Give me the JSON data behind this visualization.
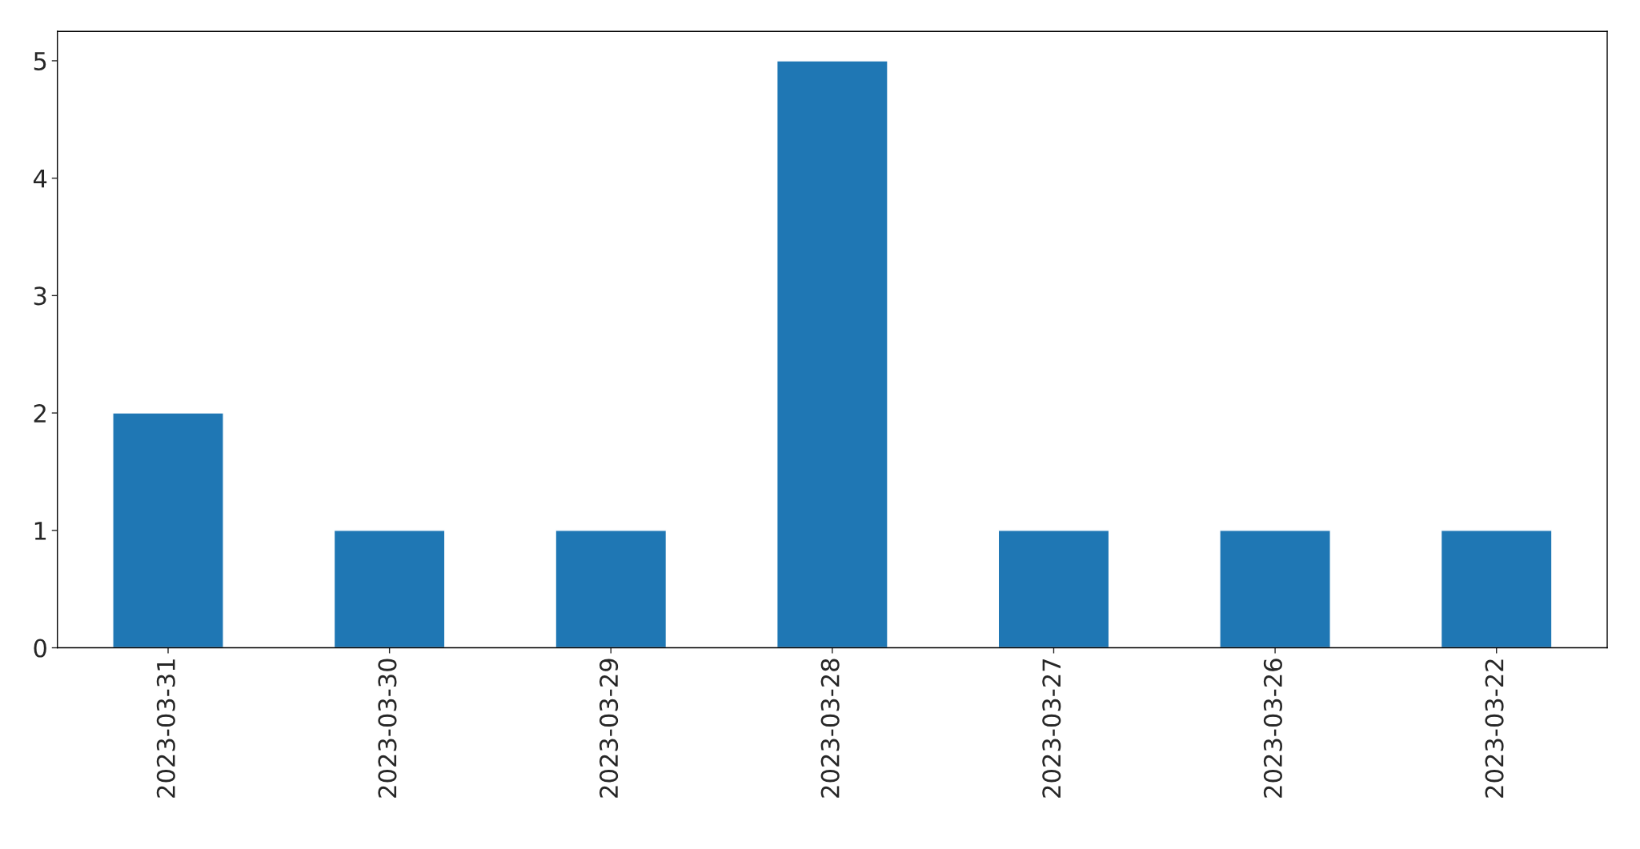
{
  "chart_data": {
    "type": "bar",
    "categories": [
      "2023-03-31",
      "2023-03-30",
      "2023-03-29",
      "2023-03-28",
      "2023-03-27",
      "2023-03-26",
      "2023-03-22"
    ],
    "values": [
      2,
      1,
      1,
      5,
      1,
      1,
      1
    ],
    "color": "#1f77b4",
    "ylim": [
      0,
      5.25
    ],
    "yticks": [
      0,
      1,
      2,
      3,
      4,
      5
    ],
    "grid": false,
    "legend": false
  }
}
